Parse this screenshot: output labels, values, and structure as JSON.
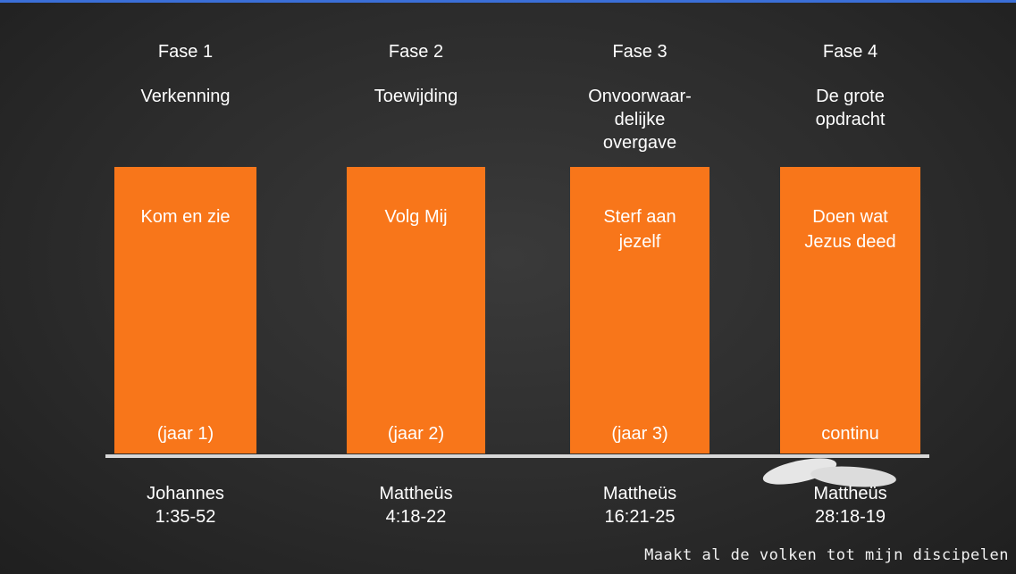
{
  "phases": [
    {
      "title": "Fase 1",
      "subtitle": [
        "Verkenning"
      ],
      "box_text": [
        "Kom en zie"
      ],
      "box_footer": "(jaar 1)",
      "reference": [
        "Johannes",
        "1:35-52"
      ]
    },
    {
      "title": "Fase 2",
      "subtitle": [
        "Toewijding"
      ],
      "box_text": [
        "Volg Mij"
      ],
      "box_footer": "(jaar 2)",
      "reference": [
        "Mattheüs",
        "4:18-22"
      ]
    },
    {
      "title": "Fase 3",
      "subtitle": [
        "Onvoorwaar-",
        "delijke",
        "overgave"
      ],
      "box_text": [
        "Sterf aan",
        "jezelf"
      ],
      "box_footer": "(jaar 3)",
      "reference": [
        "Mattheüs",
        "16:21-25"
      ]
    },
    {
      "title": "Fase 4",
      "subtitle": [
        "De grote",
        "opdracht"
      ],
      "box_text": [
        "Doen wat",
        "Jezus deed"
      ],
      "box_footer": "continu",
      "reference": [
        "Mattheüs",
        "28:18-19"
      ]
    }
  ],
  "footer": "Maakt al de volken tot mijn discipelen"
}
